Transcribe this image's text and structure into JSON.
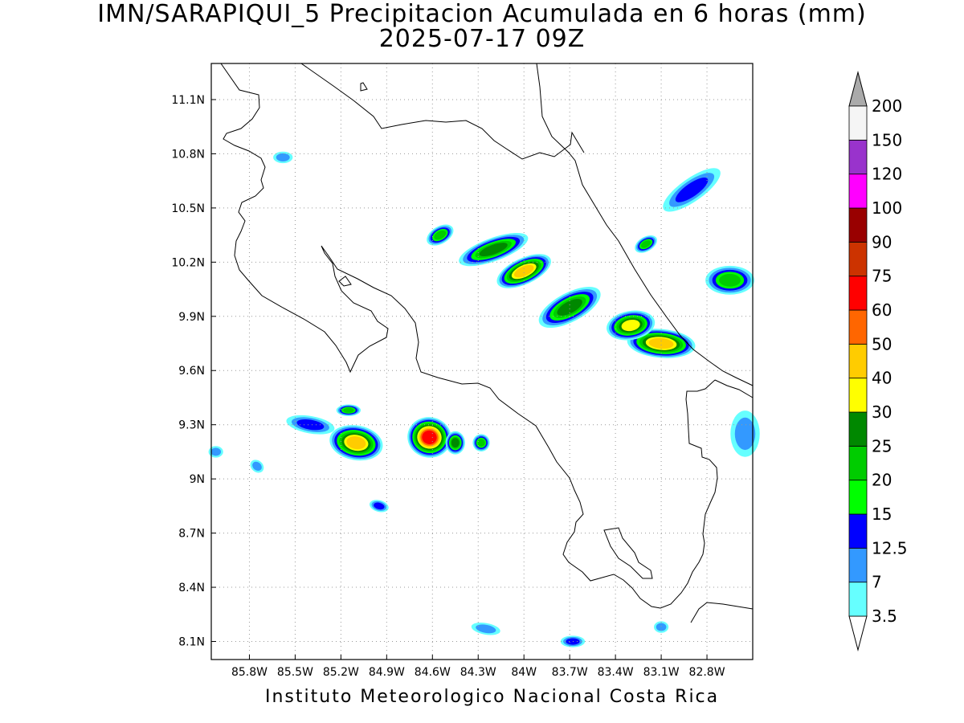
{
  "title": {
    "line1": "IMN/SARAPIQUI_5 Precipitacion Acumulada en 6 horas (mm)",
    "line2": "2025-07-17 09Z"
  },
  "footer": "Instituto Meteorologico Nacional Costa Rica",
  "map": {
    "lon_range": [
      -86.05,
      -82.5
    ],
    "lat_range": [
      8.0,
      11.3
    ],
    "lon_ticks": [
      {
        "value": -85.8,
        "label": "85.8W"
      },
      {
        "value": -85.5,
        "label": "85.5W"
      },
      {
        "value": -85.2,
        "label": "85.2W"
      },
      {
        "value": -84.9,
        "label": "84.9W"
      },
      {
        "value": -84.6,
        "label": "84.6W"
      },
      {
        "value": -84.3,
        "label": "84.3W"
      },
      {
        "value": -84.0,
        "label": "84W"
      },
      {
        "value": -83.7,
        "label": "83.7W"
      },
      {
        "value": -83.4,
        "label": "83.4W"
      },
      {
        "value": -83.1,
        "label": "83.1W"
      },
      {
        "value": -82.8,
        "label": "82.8W"
      }
    ],
    "lat_ticks": [
      {
        "value": 11.1,
        "label": "11.1N"
      },
      {
        "value": 10.8,
        "label": "10.8N"
      },
      {
        "value": 10.5,
        "label": "10.5N"
      },
      {
        "value": 10.2,
        "label": "10.2N"
      },
      {
        "value": 9.9,
        "label": "9.9N"
      },
      {
        "value": 9.6,
        "label": "9.6N"
      },
      {
        "value": 9.3,
        "label": "9.3N"
      },
      {
        "value": 9.0,
        "label": "9N"
      },
      {
        "value": 8.7,
        "label": "8.7N"
      },
      {
        "value": 8.4,
        "label": "8.4N"
      },
      {
        "value": 8.1,
        "label": "8.1N"
      }
    ],
    "grid": "dotted"
  },
  "colorbar": {
    "units": "mm",
    "levels": [
      {
        "value": "3.5",
        "color": "#66ffff"
      },
      {
        "value": "7",
        "color": "#3399ff"
      },
      {
        "value": "12.5",
        "color": "#0000ff"
      },
      {
        "value": "15",
        "color": "#00ff00"
      },
      {
        "value": "20",
        "color": "#00cc00"
      },
      {
        "value": "25",
        "color": "#008800"
      },
      {
        "value": "30",
        "color": "#ffff00"
      },
      {
        "value": "40",
        "color": "#ffcc00"
      },
      {
        "value": "50",
        "color": "#ff6600"
      },
      {
        "value": "60",
        "color": "#ff0000"
      },
      {
        "value": "75",
        "color": "#cc3300"
      },
      {
        "value": "90",
        "color": "#990000"
      },
      {
        "value": "100",
        "color": "#ff00ff"
      },
      {
        "value": "120",
        "color": "#9933cc"
      },
      {
        "value": "150",
        "color": "#f5f5f5"
      },
      {
        "value": "200",
        "color": "#aaaaaa"
      }
    ]
  },
  "rain_cells": [
    {
      "lon": -84.62,
      "lat": 9.23,
      "peak": 60,
      "rx": 0.09,
      "ry": 0.07,
      "angle": 10
    },
    {
      "lon": -85.1,
      "lat": 9.2,
      "peak": 40,
      "rx": 0.11,
      "ry": 0.06,
      "angle": 10
    },
    {
      "lon": -83.1,
      "lat": 9.75,
      "peak": 40,
      "rx": 0.14,
      "ry": 0.05,
      "angle": 5
    },
    {
      "lon": -83.3,
      "lat": 9.85,
      "peak": 30,
      "rx": 0.1,
      "ry": 0.05,
      "angle": -10
    },
    {
      "lon": -83.7,
      "lat": 9.95,
      "peak": 25,
      "rx": 0.14,
      "ry": 0.05,
      "angle": -28
    },
    {
      "lon": -84.0,
      "lat": 10.15,
      "peak": 40,
      "rx": 0.12,
      "ry": 0.045,
      "angle": -25
    },
    {
      "lon": -84.2,
      "lat": 10.27,
      "peak": 25,
      "rx": 0.15,
      "ry": 0.04,
      "angle": -20
    },
    {
      "lon": -84.55,
      "lat": 10.35,
      "peak": 20,
      "rx": 0.06,
      "ry": 0.03,
      "angle": -30
    },
    {
      "lon": -84.45,
      "lat": 9.2,
      "peak": 25,
      "rx": 0.04,
      "ry": 0.04,
      "angle": 0
    },
    {
      "lon": -84.28,
      "lat": 9.2,
      "peak": 20,
      "rx": 0.035,
      "ry": 0.03,
      "angle": 0
    },
    {
      "lon": -85.15,
      "lat": 9.38,
      "peak": 20,
      "rx": 0.05,
      "ry": 0.02,
      "angle": 0
    },
    {
      "lon": -82.65,
      "lat": 10.1,
      "peak": 20,
      "rx": 0.1,
      "ry": 0.05,
      "angle": 0
    },
    {
      "lon": -83.2,
      "lat": 10.3,
      "peak": 20,
      "rx": 0.05,
      "ry": 0.025,
      "angle": -30
    },
    {
      "lon": -82.9,
      "lat": 10.6,
      "peak": 12.5,
      "rx": 0.14,
      "ry": 0.04,
      "angle": -35
    },
    {
      "lon": -85.4,
      "lat": 9.3,
      "peak": 12.5,
      "rx": 0.1,
      "ry": 0.03,
      "angle": 10
    },
    {
      "lon": -83.68,
      "lat": 8.1,
      "peak": 12.5,
      "rx": 0.05,
      "ry": 0.02,
      "angle": 0
    },
    {
      "lon": -84.95,
      "lat": 8.85,
      "peak": 12.5,
      "rx": 0.04,
      "ry": 0.02,
      "angle": 15
    },
    {
      "lon": -86.02,
      "lat": 9.15,
      "peak": 7,
      "rx": 0.03,
      "ry": 0.02,
      "angle": 0
    },
    {
      "lon": -85.75,
      "lat": 9.07,
      "peak": 7,
      "rx": 0.03,
      "ry": 0.02,
      "angle": 40
    },
    {
      "lon": -85.58,
      "lat": 10.78,
      "peak": 7,
      "rx": 0.04,
      "ry": 0.02,
      "angle": 0
    },
    {
      "lon": -82.55,
      "lat": 9.25,
      "peak": 7,
      "rx": 0.06,
      "ry": 0.08,
      "angle": 0
    },
    {
      "lon": -83.1,
      "lat": 8.18,
      "peak": 7,
      "rx": 0.03,
      "ry": 0.02,
      "angle": 0
    },
    {
      "lon": -84.25,
      "lat": 8.17,
      "peak": 7,
      "rx": 0.06,
      "ry": 0.02,
      "angle": 10
    }
  ]
}
